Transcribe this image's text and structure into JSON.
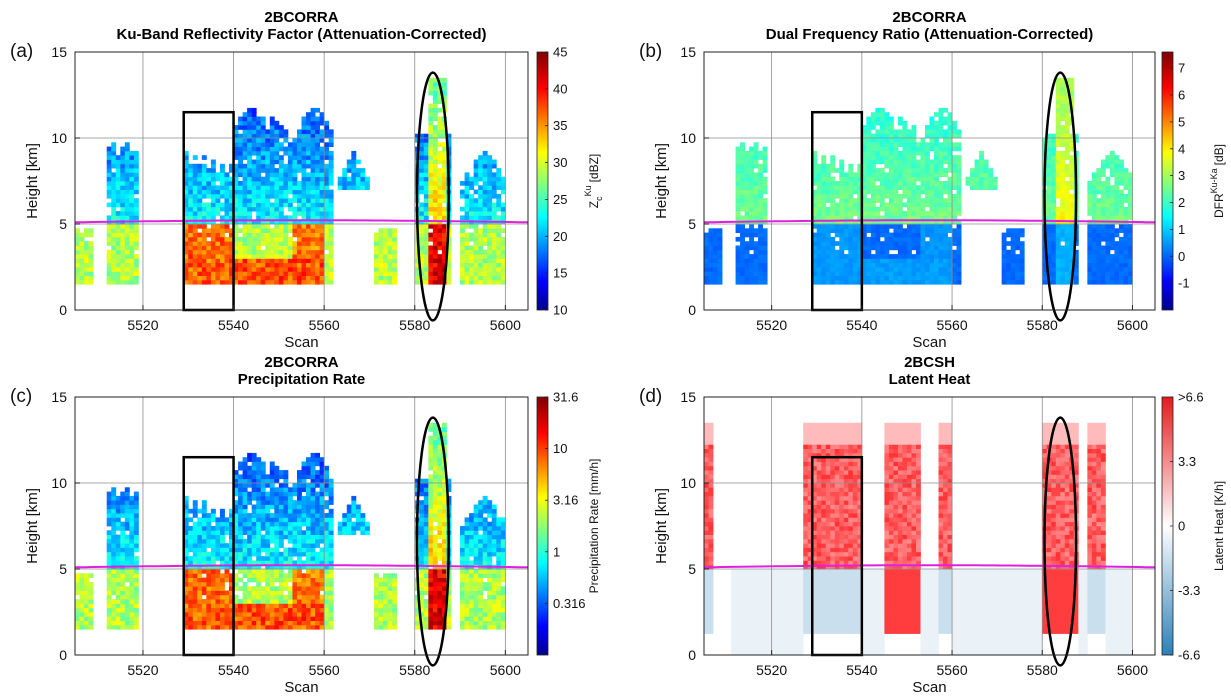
{
  "chart_data": [
    {
      "type": "heatmap",
      "panel_label": "(a)",
      "title_line1": "2BCORRA",
      "title_line2": "Ku-Band Reflectivity Factor (Attenuation-Corrected)",
      "xlabel": "Scan",
      "ylabel": "Height [km]",
      "xlim": [
        5505,
        5605
      ],
      "ylim": [
        0,
        15
      ],
      "xticks": [
        "5520",
        "5540",
        "5560",
        "5580",
        "5600"
      ],
      "yticks": [
        "0",
        "5",
        "10",
        "15"
      ],
      "grid": true,
      "colormap": "jet",
      "colorbar_label_main": "Z",
      "colorbar_label_sub": "c",
      "colorbar_label_sup": "Ku",
      "colorbar_label_unit": "[dBZ]",
      "colorbar_ticks": [
        "10",
        "15",
        "20",
        "25",
        "30",
        "35",
        "40",
        "45"
      ],
      "colorbar_range": [
        10,
        45
      ],
      "freezing_level_km": 5.1,
      "freezing_level_color": "#e020e0",
      "box_scans": [
        5529,
        5540
      ],
      "box_heights_km": [
        0,
        11.5
      ],
      "ellipse_center_scan": 5584,
      "ellipse_center_km": 6.6,
      "ellipse_half_width_scans": 3.5,
      "ellipse_half_height_km": 7.2
    },
    {
      "type": "heatmap",
      "panel_label": "(b)",
      "title_line1": "2BCORRA",
      "title_line2": "Dual Frequency Ratio (Attenuation-Corrected)",
      "xlabel": "Scan",
      "ylabel": "Height [km]",
      "xlim": [
        5505,
        5605
      ],
      "ylim": [
        0,
        15
      ],
      "xticks": [
        "5520",
        "5540",
        "5560",
        "5580",
        "5600"
      ],
      "yticks": [
        "0",
        "5",
        "10",
        "15"
      ],
      "grid": true,
      "colormap": "jet",
      "colorbar_label_main": "DFR",
      "colorbar_label_sup": "Ku-Ka",
      "colorbar_label_unit": "[dB]",
      "colorbar_ticks": [
        "-1",
        "0",
        "1",
        "2",
        "3",
        "4",
        "5",
        "6",
        "7"
      ],
      "colorbar_range": [
        -2,
        7.6
      ],
      "freezing_level_km": 5.1,
      "freezing_level_color": "#e020e0",
      "box_scans": [
        5529,
        5540
      ],
      "box_heights_km": [
        0,
        11.5
      ],
      "ellipse_center_scan": 5584,
      "ellipse_center_km": 6.6,
      "ellipse_half_width_scans": 3.5,
      "ellipse_half_height_km": 7.2
    },
    {
      "type": "heatmap",
      "panel_label": "(c)",
      "title_line1": "2BCORRA",
      "title_line2": "Precipitation Rate",
      "xlabel": "Scan",
      "ylabel": "Height [km]",
      "xlim": [
        5505,
        5605
      ],
      "ylim": [
        0,
        15
      ],
      "xticks": [
        "5520",
        "5540",
        "5560",
        "5580",
        "5600"
      ],
      "yticks": [
        "0",
        "5",
        "10",
        "15"
      ],
      "grid": true,
      "colormap": "jet",
      "colorbar_label_main": "Precipitation Rate [mm/h]",
      "colorbar_ticks": [
        "0.316",
        "1",
        "3.16",
        "10",
        "31.6"
      ],
      "colorbar_scale": "log",
      "colorbar_range": [
        0.1,
        31.6
      ],
      "freezing_level_km": 5.1,
      "freezing_level_color": "#e020e0",
      "box_scans": [
        5529,
        5540
      ],
      "box_heights_km": [
        0,
        11.5
      ],
      "ellipse_center_scan": 5584,
      "ellipse_center_km": 6.6,
      "ellipse_half_width_scans": 3.5,
      "ellipse_half_height_km": 7.2
    },
    {
      "type": "heatmap",
      "panel_label": "(d)",
      "title_line1": "2BCSH",
      "title_line2": "Latent Heat",
      "xlabel": "Scan",
      "ylabel": "Height [km]",
      "xlim": [
        5505,
        5605
      ],
      "ylim": [
        0,
        15
      ],
      "xticks": [
        "5520",
        "5540",
        "5560",
        "5580",
        "5600"
      ],
      "yticks": [
        "0",
        "5",
        "10",
        "15"
      ],
      "grid": true,
      "colormap": "diverging blue-white-red",
      "colorbar_label_main": "Latent Heat [K/h]",
      "colorbar_ticks": [
        "-6.6",
        "-3.3",
        "0",
        "3.3",
        ">6.6"
      ],
      "colorbar_range": [
        -6.6,
        6.6
      ],
      "freezing_level_km": 5.1,
      "freezing_level_color": "#e020e0",
      "box_scans": [
        5529,
        5540
      ],
      "box_heights_km": [
        0,
        11.5
      ],
      "ellipse_center_scan": 5584,
      "ellipse_center_km": 6.6,
      "ellipse_half_width_scans": 3.5,
      "ellipse_half_height_km": 7.2
    }
  ]
}
